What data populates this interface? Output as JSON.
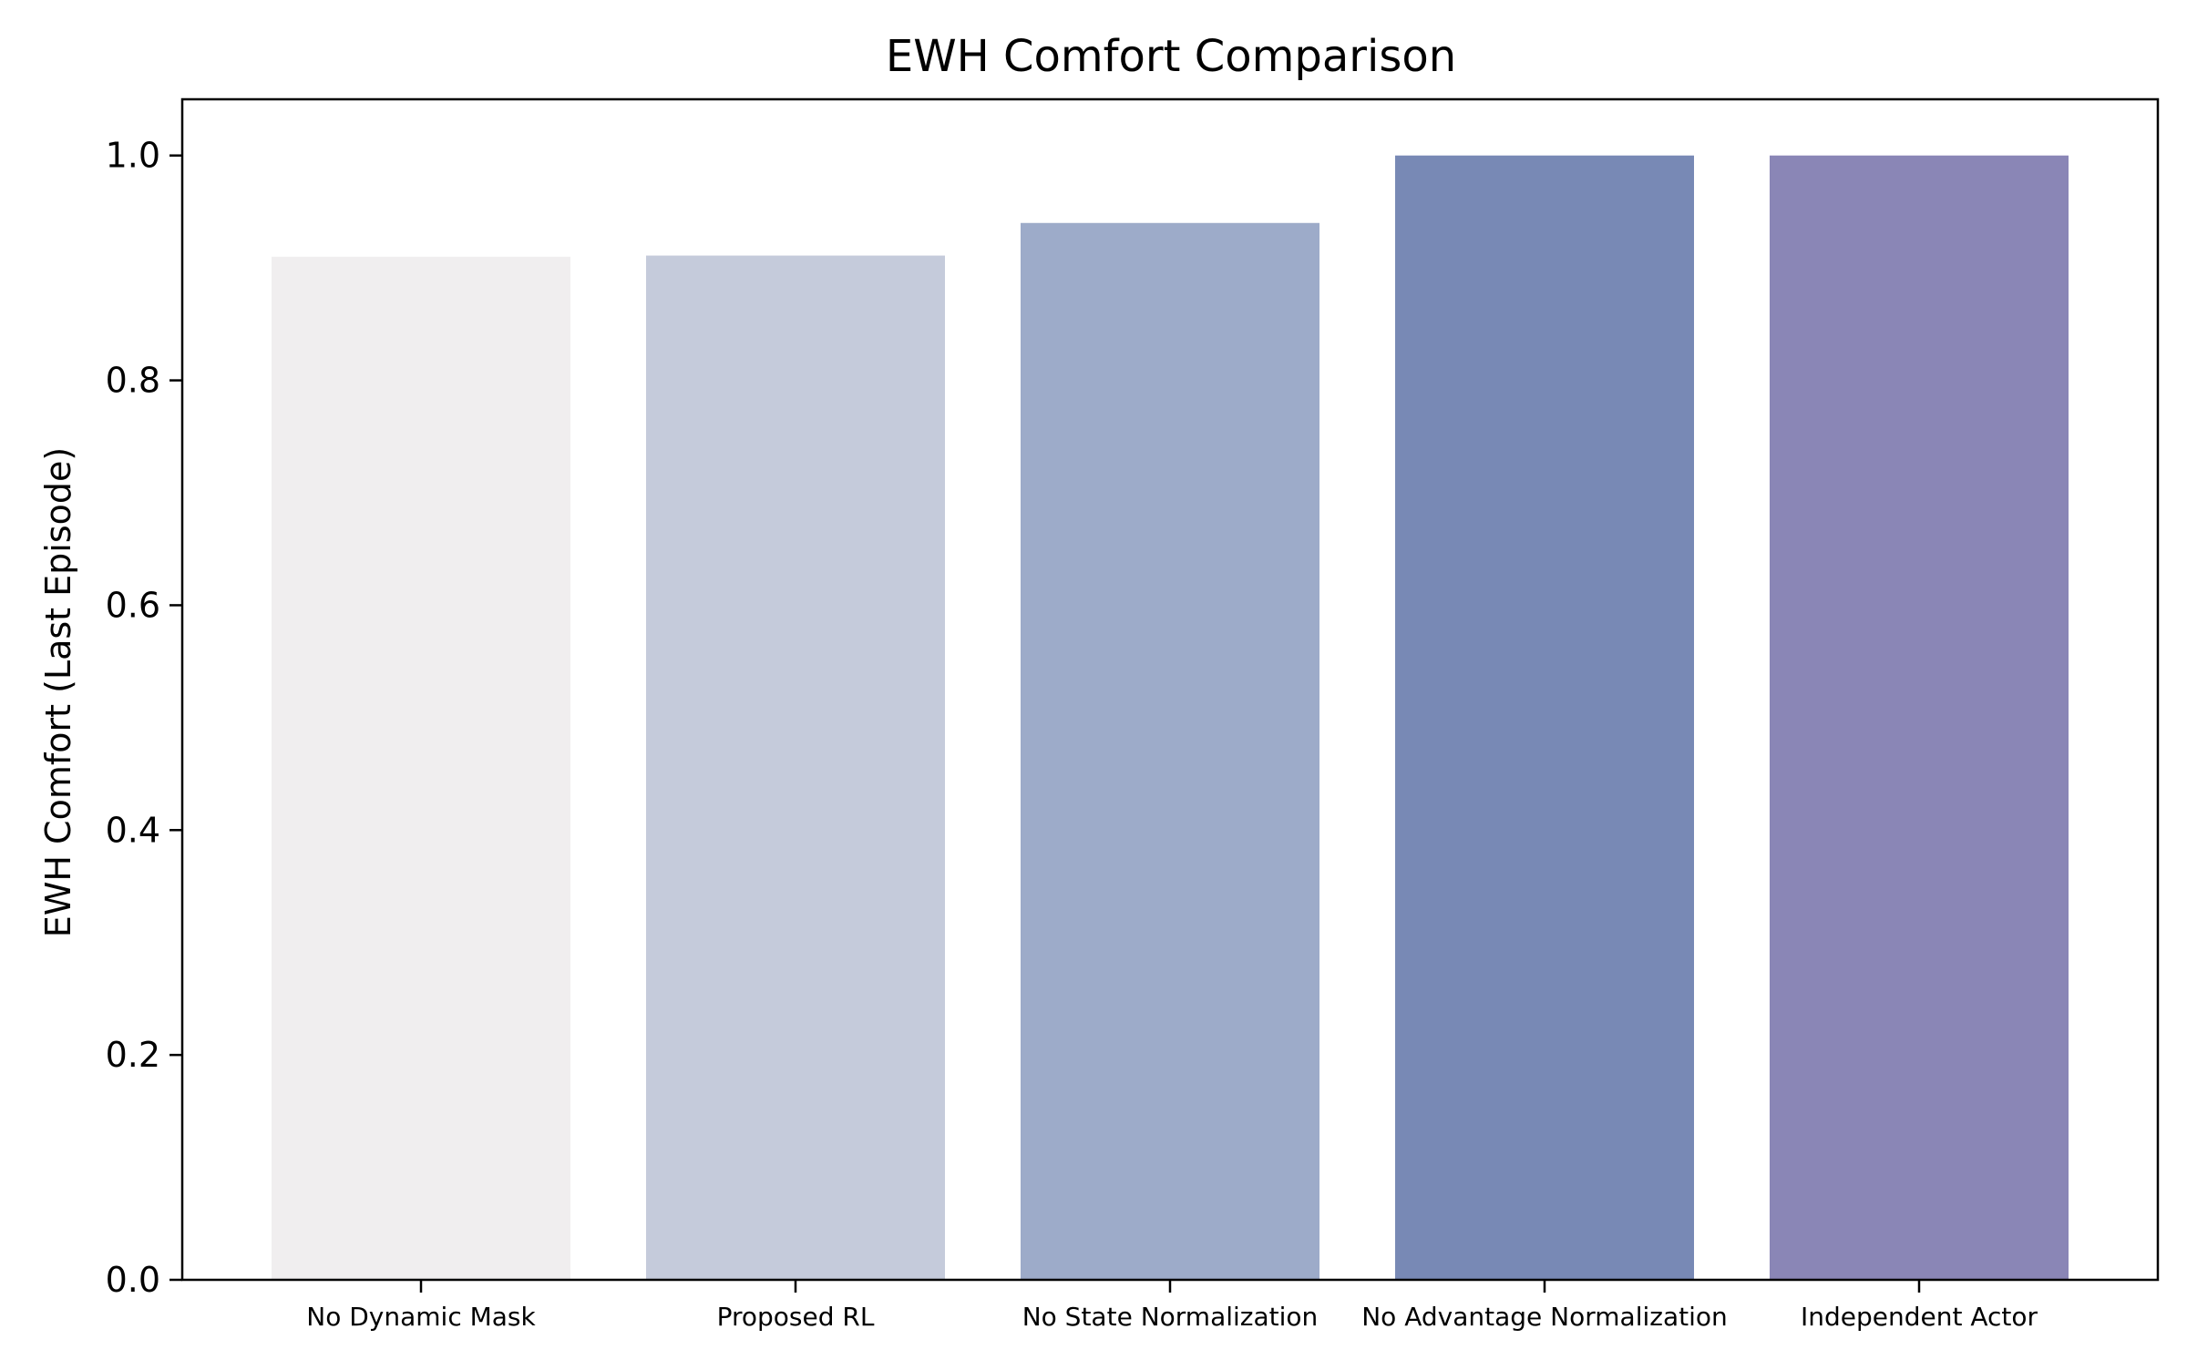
{
  "chart_data": {
    "type": "bar",
    "title": "EWH Comfort Comparison",
    "xlabel": "",
    "ylabel": "EWH Comfort (Last Episode)",
    "categories": [
      "No Dynamic Mask",
      "Proposed RL",
      "No State Normalization",
      "No Advantage Normalization",
      "Independent Actor"
    ],
    "values": [
      0.91,
      0.911,
      0.94,
      1.0,
      1.0
    ],
    "colors": [
      "#f0eeef",
      "#c5cbdb",
      "#9dabc9",
      "#7889b5",
      "#8a86b6"
    ],
    "ylim": [
      0,
      1.05
    ],
    "yticks": [
      0.0,
      0.2,
      0.4,
      0.6,
      0.8,
      1.0
    ],
    "ytick_labels": [
      "0.0",
      "0.2",
      "0.4",
      "0.6",
      "0.8",
      "1.0"
    ],
    "grid": false,
    "legend": "none"
  }
}
